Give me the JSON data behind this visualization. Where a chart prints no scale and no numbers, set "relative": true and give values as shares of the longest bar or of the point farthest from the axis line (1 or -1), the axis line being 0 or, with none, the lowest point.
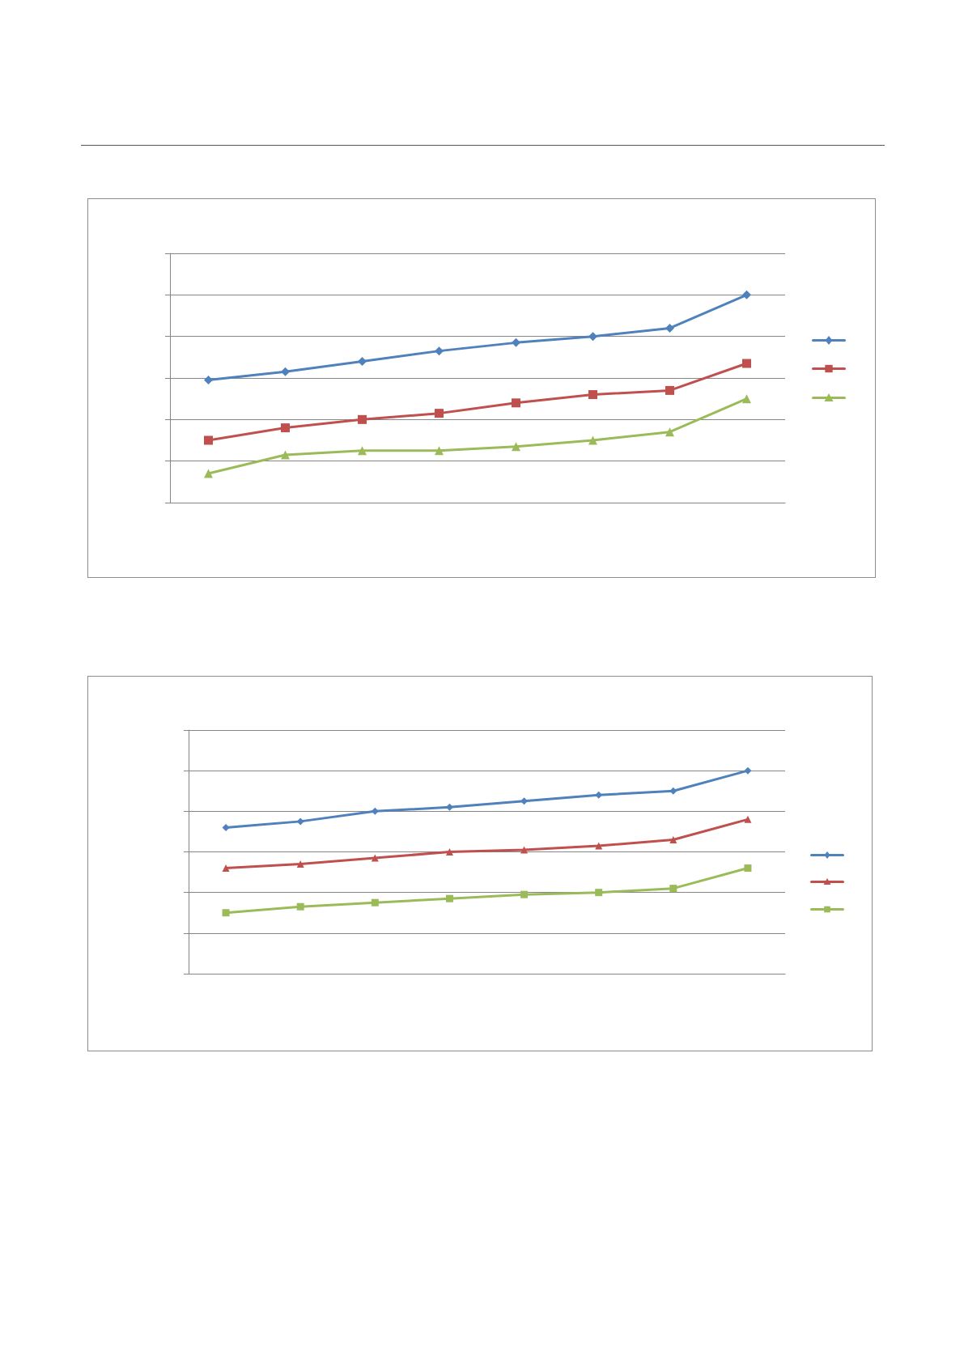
{
  "chart_data": [
    {
      "type": "line",
      "relative": true,
      "categories": [
        null,
        null,
        null,
        null,
        null,
        null,
        null,
        null
      ],
      "series": [
        {
          "color": "#4f81bd",
          "marker": "diamond",
          "values": [
            0.59,
            0.63,
            0.68,
            0.73,
            0.77,
            0.8,
            0.84,
            1
          ]
        },
        {
          "color": "#c0504d",
          "marker": "square",
          "values": [
            0.3,
            0.36,
            0.4,
            0.43,
            0.48,
            0.52,
            0.54,
            0.67
          ]
        },
        {
          "color": "#9bbb59",
          "marker": "triangle",
          "values": [
            0.14,
            0.23,
            0.25,
            0.25,
            0.27,
            0.3,
            0.34,
            0.5
          ]
        }
      ],
      "grid": "y",
      "line_style": "solid"
    },
    {
      "type": "line",
      "relative": true,
      "categories": [
        null,
        null,
        null,
        null,
        null,
        null,
        null,
        null
      ],
      "series": [
        {
          "color": "#4f81bd",
          "marker": "diamond",
          "values": [
            0.72,
            0.75,
            0.8,
            0.82,
            0.85,
            0.88,
            0.9,
            1
          ]
        },
        {
          "color": "#c0504d",
          "marker": "triangle",
          "values": [
            0.52,
            0.54,
            0.57,
            0.6,
            0.61,
            0.63,
            0.66,
            0.76
          ]
        },
        {
          "color": "#9bbb59",
          "marker": "square",
          "values": [
            0.3,
            0.33,
            0.35,
            0.37,
            0.39,
            0.4,
            0.42,
            0.52
          ]
        }
      ],
      "grid": "y",
      "line_style": "solid"
    }
  ]
}
